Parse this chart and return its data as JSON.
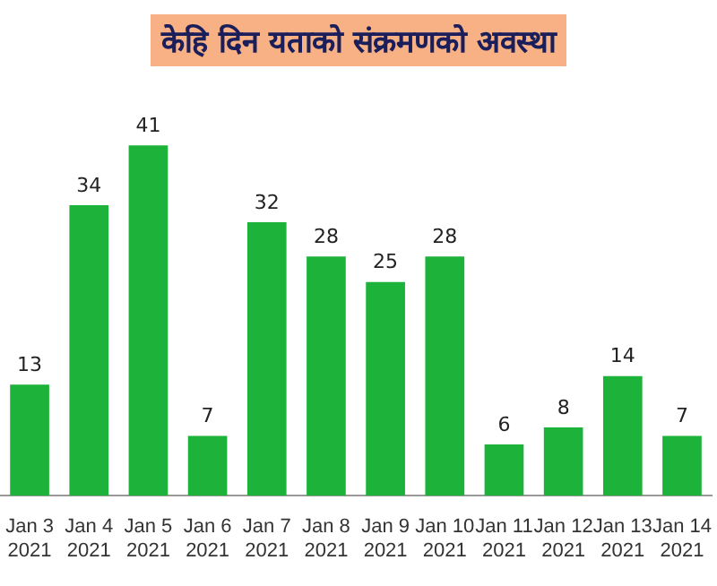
{
  "chart_data": {
    "type": "bar",
    "title": "केहि दिन यताको संक्रमणको अवस्था",
    "categories": [
      "Jan 3 2021",
      "Jan 4 2021",
      "Jan 5 2021",
      "Jan 6 2021",
      "Jan 7 2021",
      "Jan 8 2021",
      "Jan 9 2021",
      "Jan 10 2021",
      "Jan 11 2021",
      "Jan 12 2021",
      "Jan 13 2021",
      "Jan 14 2021"
    ],
    "values": [
      13,
      34,
      41,
      7,
      32,
      28,
      25,
      28,
      6,
      8,
      14,
      7
    ],
    "color": "#1db33a",
    "data_labels": true,
    "grid": false,
    "legend": false,
    "tick_labels": "x"
  }
}
